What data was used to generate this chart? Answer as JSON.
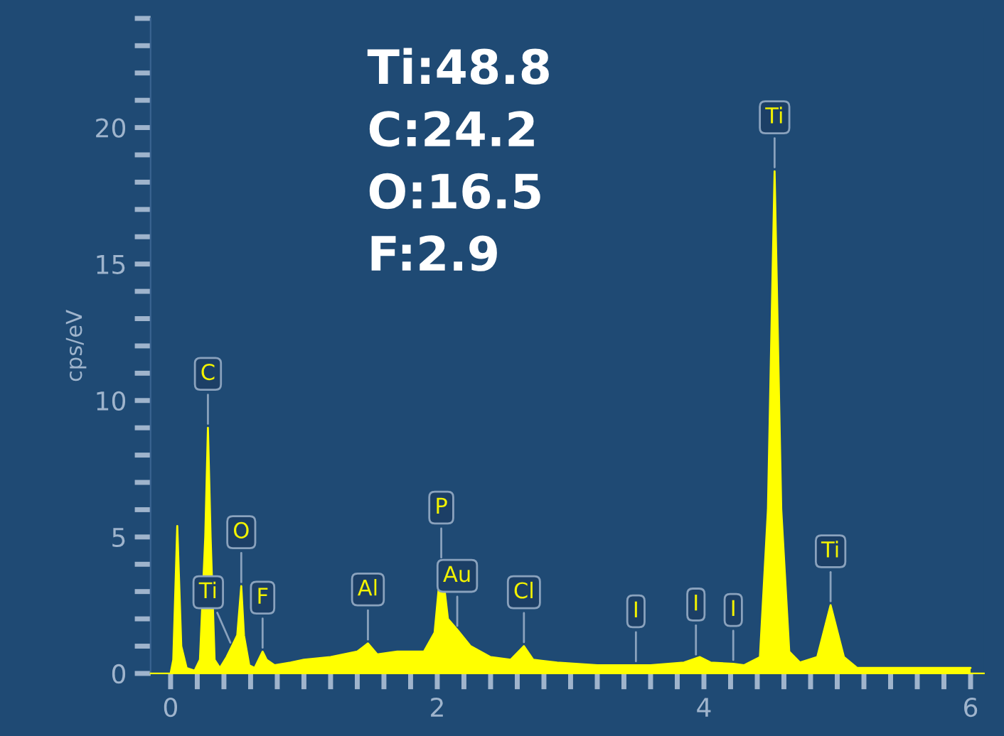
{
  "chart_data": {
    "type": "area",
    "ylabel": "cps/eV",
    "x": [
      0.0,
      0.02,
      0.05,
      0.08,
      0.12,
      0.18,
      0.22,
      0.26,
      0.28,
      0.3,
      0.33,
      0.37,
      0.42,
      0.46,
      0.5,
      0.53,
      0.55,
      0.59,
      0.63,
      0.67,
      0.69,
      0.72,
      0.78,
      0.9,
      1.0,
      1.2,
      1.4,
      1.48,
      1.55,
      1.7,
      1.9,
      1.98,
      2.03,
      2.08,
      2.15,
      2.25,
      2.4,
      2.55,
      2.65,
      2.72,
      2.9,
      3.2,
      3.49,
      3.6,
      3.85,
      3.97,
      4.05,
      4.22,
      4.3,
      4.42,
      4.48,
      4.53,
      4.58,
      4.64,
      4.72,
      4.85,
      4.95,
      5.05,
      5.15,
      5.5,
      6.0
    ],
    "series": [
      {
        "color": "#ffff00",
        "values": [
          0.0,
          0.5,
          5.4,
          1.0,
          0.2,
          0.1,
          0.5,
          5,
          9.0,
          5,
          0.5,
          0.2,
          0.6,
          1.0,
          1.4,
          3.2,
          1.4,
          0.3,
          0.2,
          0.6,
          0.8,
          0.5,
          0.3,
          0.4,
          0.5,
          0.6,
          0.8,
          1.1,
          0.7,
          0.8,
          0.8,
          1.5,
          4.1,
          2.0,
          1.6,
          1.0,
          0.6,
          0.5,
          1.0,
          0.5,
          0.4,
          0.3,
          0.3,
          0.3,
          0.4,
          0.6,
          0.4,
          0.35,
          0.3,
          0.6,
          6,
          18.4,
          6,
          0.8,
          0.4,
          0.6,
          2.5,
          0.6,
          0.2,
          0.2,
          0.2
        ]
      }
    ],
    "xlim": [
      -0.15,
      6.1
    ],
    "ylim": [
      0,
      24
    ],
    "xticks": [
      0,
      {
        "value": 0.2,
        "label": null
      },
      {
        "value": 0.4,
        "label": null
      },
      {
        "value": 0.6,
        "label": null
      },
      {
        "value": 0.8,
        "label": null
      },
      {
        "value": 1,
        "label": null
      },
      {
        "value": 1.2,
        "label": null
      },
      {
        "value": 1.4,
        "label": null
      },
      {
        "value": 1.6,
        "label": null
      },
      {
        "value": 1.8,
        "label": null
      },
      2,
      {
        "value": 2.2,
        "label": null
      },
      {
        "value": 2.4,
        "label": null
      },
      {
        "value": 2.6,
        "label": null
      },
      {
        "value": 2.8,
        "label": null
      },
      {
        "value": 3,
        "label": null
      },
      {
        "value": 3.2,
        "label": null
      },
      {
        "value": 3.4,
        "label": null
      },
      {
        "value": 3.6,
        "label": null
      },
      {
        "value": 3.8,
        "label": null
      },
      4,
      {
        "value": 4.2,
        "label": null
      },
      {
        "value": 4.4,
        "label": null
      },
      {
        "value": 4.6,
        "label": null
      },
      {
        "value": 4.8,
        "label": null
      },
      {
        "value": 5,
        "label": null
      },
      {
        "value": 5.2,
        "label": null
      },
      {
        "value": 5.4,
        "label": null
      },
      {
        "value": 5.6,
        "label": null
      },
      {
        "value": 5.8,
        "label": null
      },
      6
    ],
    "yticks": [
      0,
      {
        "value": 1,
        "label": null
      },
      {
        "value": 2,
        "label": null
      },
      {
        "value": 3,
        "label": null
      },
      {
        "value": 4,
        "label": null
      },
      5,
      {
        "value": 6,
        "label": null
      },
      {
        "value": 7,
        "label": null
      },
      {
        "value": 8,
        "label": null
      },
      {
        "value": 9,
        "label": null
      },
      10,
      {
        "value": 11,
        "label": null
      },
      {
        "value": 12,
        "label": null
      },
      {
        "value": 13,
        "label": null
      },
      {
        "value": 14,
        "label": null
      },
      15,
      {
        "value": 16,
        "label": null
      },
      {
        "value": 17,
        "label": null
      },
      {
        "value": 18,
        "label": null
      },
      {
        "value": 19,
        "label": null
      },
      20,
      {
        "value": 21,
        "label": null
      },
      {
        "value": 22,
        "label": null
      },
      {
        "value": 23,
        "label": null
      },
      {
        "value": 24,
        "label": null
      }
    ],
    "grid": false,
    "legend": false,
    "annotations": [
      {
        "text": "C",
        "x": 0.28,
        "y": 9.0
      },
      {
        "text": "O",
        "x": 0.53,
        "y": 3.2
      },
      {
        "text": "Ti",
        "x": 0.46,
        "y": 1.0
      },
      {
        "text": "F",
        "x": 0.69,
        "y": 0.8
      },
      {
        "text": "Al",
        "x": 1.48,
        "y": 1.1
      },
      {
        "text": "P",
        "x": 2.03,
        "y": 4.1
      },
      {
        "text": "Au",
        "x": 2.15,
        "y": 1.6
      },
      {
        "text": "Cl",
        "x": 2.65,
        "y": 1.0
      },
      {
        "text": "I",
        "x": 3.49,
        "y": 0.3
      },
      {
        "text": "I",
        "x": 3.94,
        "y": 0.55
      },
      {
        "text": "I",
        "x": 4.22,
        "y": 0.35
      },
      {
        "text": "Ti",
        "x": 4.53,
        "y": 18.4
      },
      {
        "text": "Ti",
        "x": 4.95,
        "y": 2.5
      },
      "Ti:48.8",
      "C:24.2",
      "O:16.5",
      "F:2.9"
    ]
  }
}
